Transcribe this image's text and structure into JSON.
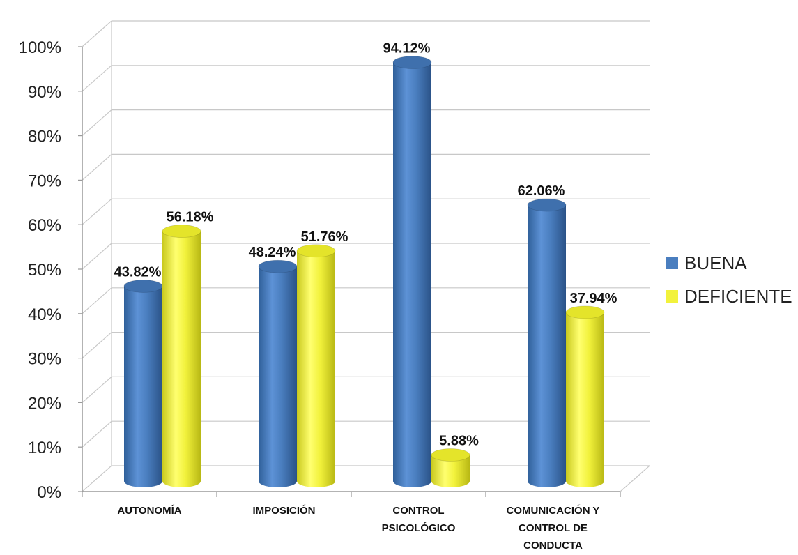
{
  "chart_data": {
    "type": "bar",
    "categories": [
      [
        "AUTONOMÍA"
      ],
      [
        "IMPOSICIÓN"
      ],
      [
        "CONTROL",
        "PSICOLÓGICO"
      ],
      [
        "COMUNICACIÓN Y",
        "CONTROL DE",
        "CONDUCTA"
      ]
    ],
    "series": [
      {
        "name": "BUENA",
        "color": "#4a7ebf",
        "values": [
          43.82,
          48.24,
          94.12,
          62.06
        ],
        "labels": [
          "43.82%",
          "48.24%",
          "94.12%",
          "62.06%"
        ]
      },
      {
        "name": "DEFICIENTE",
        "color": "#f2f23c",
        "values": [
          56.18,
          51.76,
          5.88,
          37.94
        ],
        "labels": [
          "56.18%",
          "51.76%",
          "5.88%",
          "37.94%"
        ]
      }
    ],
    "yticks": [
      "0%",
      "10%",
      "20%",
      "30%",
      "40%",
      "50%",
      "60%",
      "70%",
      "80%",
      "90%",
      "100%"
    ],
    "ylim": [
      0,
      100
    ],
    "grid": true,
    "legend_position": "right",
    "style": "3d-cylinder"
  }
}
